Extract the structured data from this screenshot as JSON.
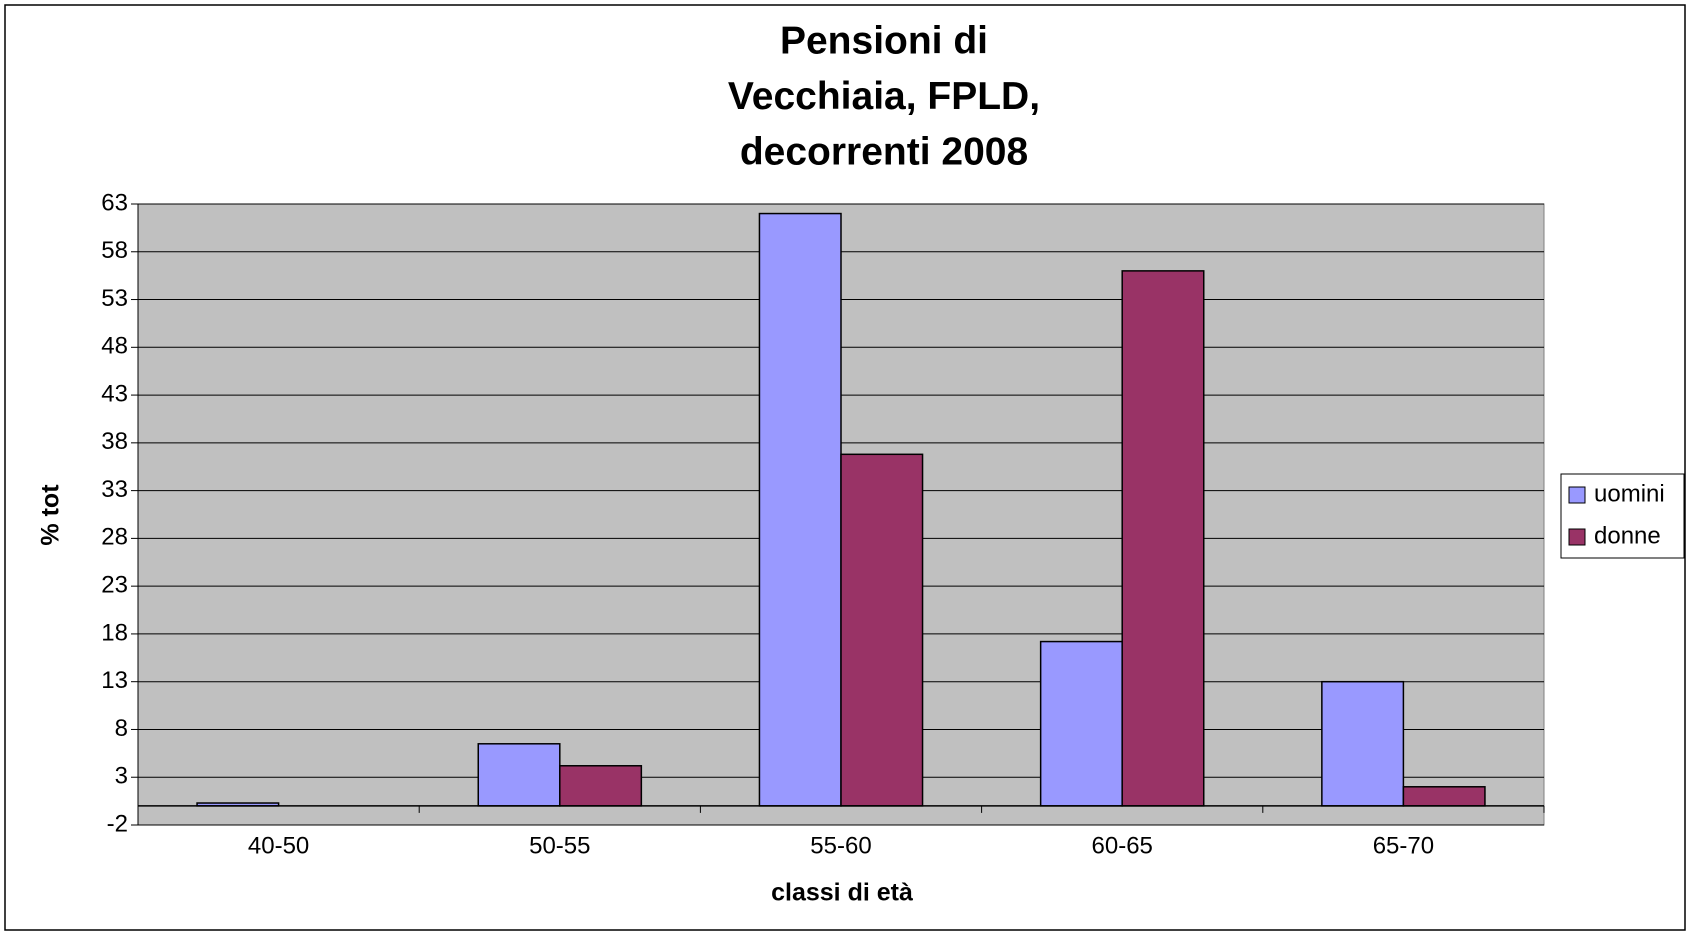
{
  "chart_data": {
    "type": "bar",
    "title": [
      "Pensioni di",
      "Vecchiaia, FPLD,",
      "decorrenti 2008"
    ],
    "x_label": "classi di età",
    "y_label": "% tot",
    "categories": [
      "40-50",
      "50-55",
      "55-60",
      "60-65",
      "65-70"
    ],
    "series": [
      {
        "name": "uomini",
        "color": "#9999ff",
        "values": [
          0.3,
          6.5,
          62,
          17.2,
          13
        ]
      },
      {
        "name": "donne",
        "color": "#993366",
        "values": [
          0,
          4.2,
          36.8,
          56,
          2
        ]
      }
    ],
    "ylim": [
      -2,
      63
    ],
    "yticks": [
      -2,
      3,
      8,
      13,
      18,
      23,
      28,
      33,
      38,
      43,
      48,
      53,
      58,
      63
    ],
    "grid": true,
    "legend": "right",
    "plot_background": "#c0c0c0"
  }
}
